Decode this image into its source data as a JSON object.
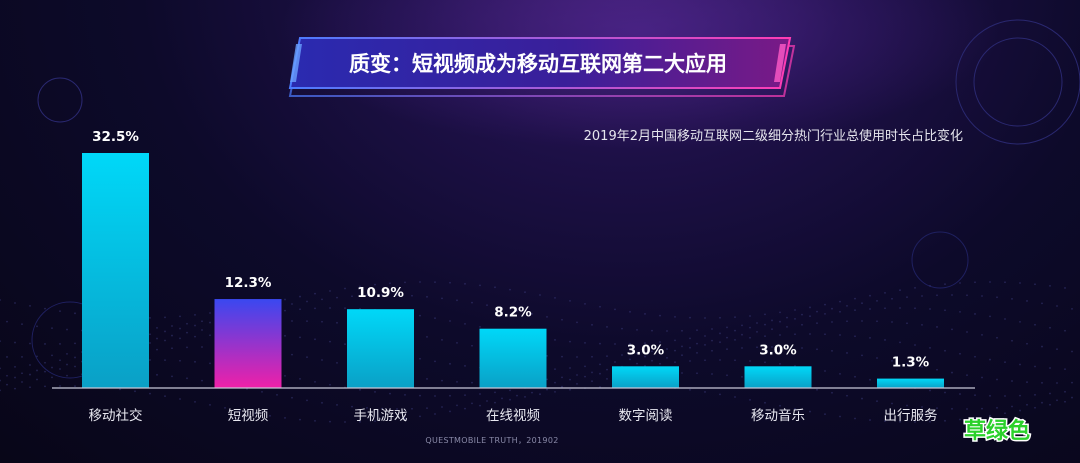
{
  "title": "质变：短视频成为移动互联网第二大应用",
  "subtitle": "2019年2月中国移动互联网二级细分热门行业总使用时长占比变化",
  "source": "QUESTMOBILE TRUTH，201902",
  "watermark": "草绿色",
  "colors": {
    "bar_top": "#00d8f8",
    "bar_bottom": "#0aa0c6",
    "highlight_top": "#3a48f0",
    "highlight_bottom": "#f020a8",
    "axis": "#c8c8d8"
  },
  "chart_data": {
    "type": "bar",
    "title": "2019年2月中国移动互联网二级细分热门行业总使用时长占比变化",
    "categories": [
      "移动社交",
      "短视频",
      "手机游戏",
      "在线视频",
      "数字阅读",
      "移动音乐",
      "出行服务"
    ],
    "values": [
      32.5,
      12.3,
      10.9,
      8.2,
      3.0,
      3.0,
      1.3
    ],
    "value_labels": [
      "32.5%",
      "12.3%",
      "10.9%",
      "8.2%",
      "3.0%",
      "3.0%",
      "1.3%"
    ],
    "highlight_index": 1,
    "unit": "%",
    "ylim": [
      0,
      32.5
    ],
    "grid": false,
    "legend": "none"
  }
}
